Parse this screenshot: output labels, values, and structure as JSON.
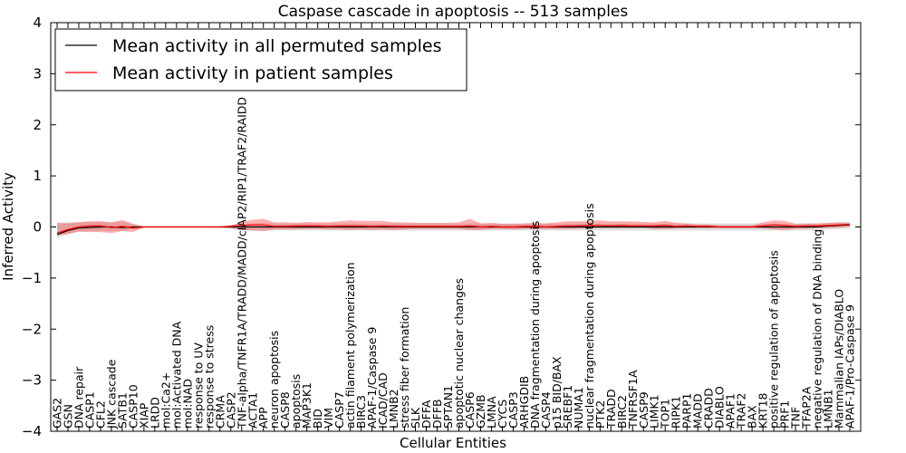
{
  "chart_data": {
    "type": "line",
    "title": "Caspase cascade in apoptosis -- 513 samples",
    "xlabel": "Cellular Entities",
    "ylabel": "Inferred Activity",
    "ylim": [
      -4,
      4
    ],
    "yticks": [
      -4,
      -3,
      -2,
      -1,
      0,
      1,
      2,
      3,
      4
    ],
    "ytick_labels": [
      "−4",
      "−3",
      "−2",
      "−1",
      "0",
      "1",
      "2",
      "3",
      "4"
    ],
    "legend_position": "top-left",
    "grid": false,
    "categories": [
      "GAS2",
      "GSN",
      "DNA repair",
      "CASP1",
      "CFL2",
      "JNK cascade",
      "SATB1",
      "CASP10",
      "XIAP",
      "LRDD",
      "mol:Ca2+",
      "mol:Activated DNA",
      "mol:NAD",
      "response to UV",
      "response to stress",
      "CRMA",
      "CASP2",
      "TNF-alpha/TNFR1A/TRADD/MADD/cIAP2/RIP1/TRAF2/RAIDD",
      "ACTA1",
      "APP",
      "neuron apoptosis",
      "CASP8",
      "apoptosis",
      "MAP3K1",
      "BID",
      "VIM",
      "CASP7",
      "actin filament polymerization",
      "BIRC3",
      "APAF-1/Caspase 9",
      "ICAD/CAD",
      "LMNB2",
      "stress fiber formation",
      "SLK",
      "DFFA",
      "DFFB",
      "SPTAN1",
      "apoptotic nuclear changes",
      "CASP6",
      "GZMB",
      "LMNA",
      "CYCS",
      "CASP3",
      "ARHGDIB",
      "DNA fragmentation during apoptosis",
      "CASP4",
      "p15 BID/BAX",
      "SREBF1",
      "NUMA1",
      "nuclear fragmentation during apoptosis",
      "PTK2",
      "TRADD",
      "BIRC2",
      "TNFRSF1A",
      "CASP9",
      "LIMK1",
      "TOP1",
      "RIPK1",
      "PARP1",
      "MADD",
      "CRADD",
      "DIABLO",
      "APAF1",
      "TRAF2",
      "BAX",
      "KRT18",
      "positive regulation of apoptosis",
      "PRF1",
      "TNF",
      "TFAP2A",
      "negative regulation of DNA binding",
      "LMNB1",
      "Mammalian IAPs/DIABLO",
      "APAF-1/Pro-Caspase 9"
    ],
    "series": [
      {
        "name": "Mean activity in all permuted samples",
        "color": "#000000",
        "values": [
          -0.15,
          -0.07,
          -0.02,
          -0.01,
          0,
          0,
          -0.01,
          0,
          0,
          0,
          0,
          0,
          0,
          0,
          0,
          0,
          0,
          0,
          0,
          0,
          0,
          0,
          0,
          0,
          0,
          0,
          0,
          0,
          0,
          0,
          0,
          0,
          0,
          0,
          0,
          0,
          0,
          0,
          0,
          0,
          0,
          0,
          0,
          0,
          0,
          0,
          0,
          0,
          0,
          0,
          0,
          0,
          0,
          0,
          0,
          0,
          0,
          0,
          0,
          0,
          0,
          0,
          0,
          0,
          0,
          0,
          0,
          0,
          0,
          0,
          0,
          0.02,
          0.03,
          0.04
        ],
        "band_lower": [
          -0.22,
          -0.14,
          -0.09,
          -0.08,
          -0.08,
          -0.07,
          -0.08,
          -0.04,
          -0.01,
          -0.01,
          -0.01,
          -0.01,
          -0.01,
          -0.01,
          -0.01,
          -0.01,
          -0.04,
          -0.07,
          -0.07,
          -0.08,
          -0.07,
          -0.07,
          -0.07,
          -0.07,
          -0.07,
          -0.07,
          -0.07,
          -0.07,
          -0.07,
          -0.07,
          -0.07,
          -0.07,
          -0.07,
          -0.07,
          -0.07,
          -0.07,
          -0.07,
          -0.07,
          -0.07,
          -0.07,
          -0.07,
          -0.07,
          -0.07,
          -0.07,
          -0.07,
          -0.07,
          -0.07,
          -0.07,
          -0.07,
          -0.07,
          -0.07,
          -0.07,
          -0.07,
          -0.07,
          -0.07,
          -0.07,
          -0.07,
          -0.07,
          -0.07,
          -0.07,
          -0.07,
          -0.07,
          -0.07,
          -0.07,
          -0.07,
          -0.07,
          -0.07,
          -0.07,
          -0.07,
          -0.07,
          -0.07,
          -0.05,
          -0.04,
          -0.03
        ],
        "band_upper": [
          0.08,
          0.09,
          0.1,
          0.1,
          0.1,
          0.09,
          0.1,
          0.06,
          0.01,
          0.01,
          0.01,
          0.01,
          0.01,
          0.01,
          0.01,
          0.01,
          0.04,
          0.07,
          0.07,
          0.08,
          0.07,
          0.07,
          0.07,
          0.07,
          0.07,
          0.07,
          0.07,
          0.07,
          0.07,
          0.07,
          0.07,
          0.07,
          0.07,
          0.07,
          0.07,
          0.07,
          0.07,
          0.07,
          0.07,
          0.07,
          0.07,
          0.07,
          0.07,
          0.07,
          0.07,
          0.07,
          0.07,
          0.07,
          0.07,
          0.07,
          0.07,
          0.07,
          0.07,
          0.07,
          0.07,
          0.07,
          0.07,
          0.07,
          0.07,
          0.07,
          0.07,
          0.07,
          0.07,
          0.07,
          0.07,
          0.07,
          0.07,
          0.07,
          0.07,
          0.07,
          0.07,
          0.08,
          0.09,
          0.1
        ]
      },
      {
        "name": "Mean activity in patient samples",
        "color": "#ff0000",
        "values": [
          -0.12,
          -0.05,
          0,
          0.02,
          0.02,
          -0.01,
          0.01,
          -0.02,
          0,
          0,
          0,
          0,
          0,
          0,
          0,
          0,
          0.01,
          0.03,
          0.04,
          0.04,
          0.01,
          0.01,
          0.02,
          0.02,
          0.02,
          0.01,
          0.02,
          0.02,
          0.02,
          0.01,
          0.02,
          0.01,
          0.01,
          0.01,
          0.01,
          0.01,
          0.01,
          0.01,
          0.02,
          0,
          0.01,
          0,
          0,
          0.01,
          0.01,
          0,
          0.01,
          0.02,
          0.02,
          0.03,
          0.03,
          0.02,
          0.03,
          0.02,
          0.02,
          0.02,
          0.03,
          0.01,
          0.02,
          0.01,
          0.01,
          0,
          0,
          0,
          0,
          0.02,
          0.04,
          0.03,
          0.01,
          0.02,
          0.02,
          0.03,
          0.04,
          0.05
        ],
        "band_lower": [
          -0.16,
          -0.14,
          -0.09,
          -0.1,
          -0.1,
          -0.12,
          -0.08,
          -0.1,
          -0.01,
          -0.01,
          -0.01,
          -0.01,
          -0.01,
          -0.01,
          -0.01,
          -0.01,
          -0.02,
          -0.06,
          -0.07,
          -0.08,
          -0.05,
          -0.05,
          -0.05,
          -0.04,
          -0.04,
          -0.05,
          -0.05,
          -0.06,
          -0.05,
          -0.06,
          -0.05,
          -0.06,
          -0.05,
          -0.04,
          -0.04,
          -0.04,
          -0.04,
          -0.04,
          -0.06,
          -0.06,
          -0.04,
          -0.04,
          -0.05,
          -0.04,
          -0.04,
          -0.04,
          -0.04,
          -0.04,
          -0.03,
          -0.02,
          -0.02,
          -0.02,
          -0.02,
          -0.02,
          -0.02,
          -0.04,
          -0.04,
          -0.03,
          -0.02,
          -0.02,
          -0.02,
          -0.02,
          -0.02,
          -0.02,
          -0.02,
          -0.03,
          -0.05,
          -0.06,
          -0.04,
          -0.03,
          -0.02,
          -0.02,
          -0.01,
          0
        ],
        "band_upper": [
          0.08,
          0.07,
          0.09,
          0.11,
          0.11,
          0.09,
          0.14,
          0.06,
          0.01,
          0.01,
          0.01,
          0.01,
          0.01,
          0.01,
          0.01,
          0.01,
          0.03,
          0.1,
          0.14,
          0.16,
          0.09,
          0.09,
          0.08,
          0.1,
          0.09,
          0.09,
          0.11,
          0.13,
          0.12,
          0.12,
          0.12,
          0.09,
          0.09,
          0.08,
          0.08,
          0.08,
          0.08,
          0.09,
          0.16,
          0.07,
          0.08,
          0.06,
          0.06,
          0.07,
          0.08,
          0.07,
          0.09,
          0.11,
          0.11,
          0.12,
          0.13,
          0.11,
          0.11,
          0.11,
          0.1,
          0.09,
          0.12,
          0.08,
          0.07,
          0.05,
          0.05,
          0.03,
          0.03,
          0.03,
          0.03,
          0.09,
          0.13,
          0.12,
          0.06,
          0.07,
          0.07,
          0.08,
          0.09,
          0.08
        ]
      }
    ]
  }
}
